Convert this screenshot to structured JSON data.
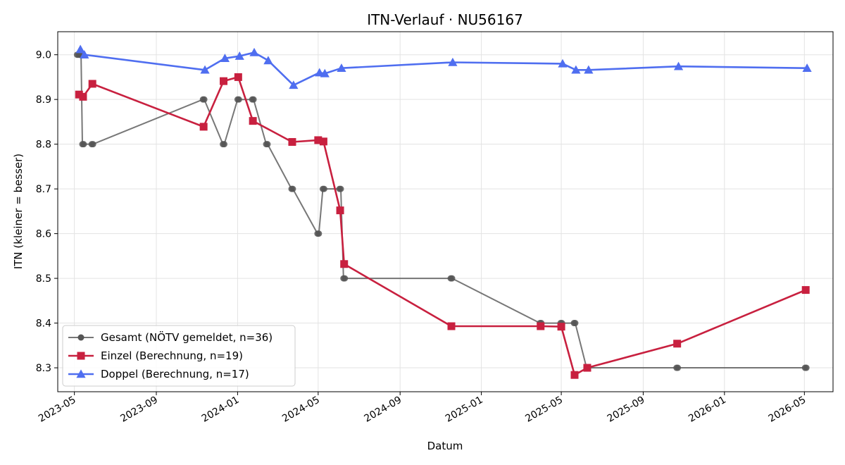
{
  "chart_data": {
    "type": "line",
    "title": "ITN-Verlauf · NU56167",
    "xlabel": "Datum",
    "ylabel": "ITN  (kleiner = besser)",
    "xlim": [
      "2023-04-06",
      "2026-06-13"
    ],
    "ylim": [
      8.2465,
      9.0515
    ],
    "grid": true,
    "legend_position": "lower-left",
    "x_ticks": [
      "2023-05",
      "2023-09",
      "2024-01",
      "2024-05",
      "2024-09",
      "2025-01",
      "2025-05",
      "2025-09",
      "2026-01",
      "2026-05"
    ],
    "y_ticks": [
      "8.3",
      "8.4",
      "8.5",
      "8.6",
      "8.7",
      "8.8",
      "8.9",
      "9.0"
    ],
    "series": [
      {
        "name": "Gesamt (NÖTV gemeldet, n=36)",
        "color": "#555555",
        "marker": "circle",
        "points": [
          [
            "2023-05-05",
            9.0
          ],
          [
            "2023-05-07",
            9.0
          ],
          [
            "2023-05-09",
            9.0
          ],
          [
            "2023-05-11",
            9.0
          ],
          [
            "2023-05-13",
            8.8
          ],
          [
            "2023-05-15",
            8.8
          ],
          [
            "2023-05-27",
            8.8
          ],
          [
            "2023-05-29",
            8.8
          ],
          [
            "2023-11-10",
            8.9
          ],
          [
            "2023-11-12",
            8.9
          ],
          [
            "2023-12-10",
            8.8
          ],
          [
            "2023-12-12",
            8.8
          ],
          [
            "2024-01-01",
            8.9
          ],
          [
            "2024-01-03",
            8.9
          ],
          [
            "2024-01-23",
            8.9
          ],
          [
            "2024-01-25",
            8.9
          ],
          [
            "2024-02-13",
            8.8
          ],
          [
            "2024-02-15",
            8.8
          ],
          [
            "2024-03-22",
            8.7
          ],
          [
            "2024-03-24",
            8.7
          ],
          [
            "2024-04-30",
            8.6
          ],
          [
            "2024-05-02",
            8.6
          ],
          [
            "2024-05-08",
            8.7
          ],
          [
            "2024-05-10",
            8.7
          ],
          [
            "2024-06-02",
            8.7
          ],
          [
            "2024-06-04",
            8.7
          ],
          [
            "2024-06-08",
            8.5
          ],
          [
            "2024-06-10",
            8.5
          ],
          [
            "2024-11-16",
            8.5
          ],
          [
            "2024-11-18",
            8.5
          ],
          [
            "2025-03-30",
            8.4
          ],
          [
            "2025-04-01",
            8.4
          ],
          [
            "2025-04-30",
            8.4
          ],
          [
            "2025-05-02",
            8.4
          ],
          [
            "2025-05-20",
            8.4
          ],
          [
            "2025-05-22",
            8.4
          ],
          [
            "2025-06-08",
            8.3
          ],
          [
            "2025-06-10",
            8.3
          ],
          [
            "2025-10-21",
            8.3
          ],
          [
            "2025-10-23",
            8.3
          ],
          [
            "2026-05-02",
            8.3
          ],
          [
            "2026-05-04",
            8.3
          ]
        ]
      },
      {
        "name": "Einzel (Berechnung, n=19)",
        "color": "#c8203f",
        "marker": "square",
        "points": [
          [
            "2023-05-08",
            8.911
          ],
          [
            "2023-05-14",
            8.906
          ],
          [
            "2023-05-28",
            8.935
          ],
          [
            "2023-11-11",
            8.839
          ],
          [
            "2023-12-11",
            8.941
          ],
          [
            "2024-01-02",
            8.95
          ],
          [
            "2024-01-24",
            8.852
          ],
          [
            "2024-03-23",
            8.805
          ],
          [
            "2024-05-01",
            8.809
          ],
          [
            "2024-05-09",
            8.806
          ],
          [
            "2024-06-03",
            8.652
          ],
          [
            "2024-06-09",
            8.532
          ],
          [
            "2024-11-17",
            8.393
          ],
          [
            "2025-03-31",
            8.393
          ],
          [
            "2025-05-01",
            8.392
          ],
          [
            "2025-05-21",
            8.284
          ],
          [
            "2025-06-09",
            8.3
          ],
          [
            "2025-10-22",
            8.354
          ],
          [
            "2026-05-03",
            8.474
          ]
        ]
      },
      {
        "name": "Doppel (Berechnung, n=17)",
        "color": "#4f6ef0",
        "marker": "triangle",
        "points": [
          [
            "2023-05-10",
            9.012
          ],
          [
            "2023-05-16",
            9.0
          ],
          [
            "2023-11-13",
            8.966
          ],
          [
            "2023-12-13",
            8.992
          ],
          [
            "2024-01-04",
            8.997
          ],
          [
            "2024-01-26",
            9.005
          ],
          [
            "2024-02-16",
            8.987
          ],
          [
            "2024-03-25",
            8.932
          ],
          [
            "2024-05-03",
            8.96
          ],
          [
            "2024-05-11",
            8.958
          ],
          [
            "2024-06-05",
            8.97
          ],
          [
            "2024-11-19",
            8.983
          ],
          [
            "2025-05-03",
            8.98
          ],
          [
            "2025-05-23",
            8.966
          ],
          [
            "2025-06-11",
            8.966
          ],
          [
            "2025-10-24",
            8.974
          ],
          [
            "2026-05-05",
            8.97
          ]
        ]
      }
    ]
  }
}
